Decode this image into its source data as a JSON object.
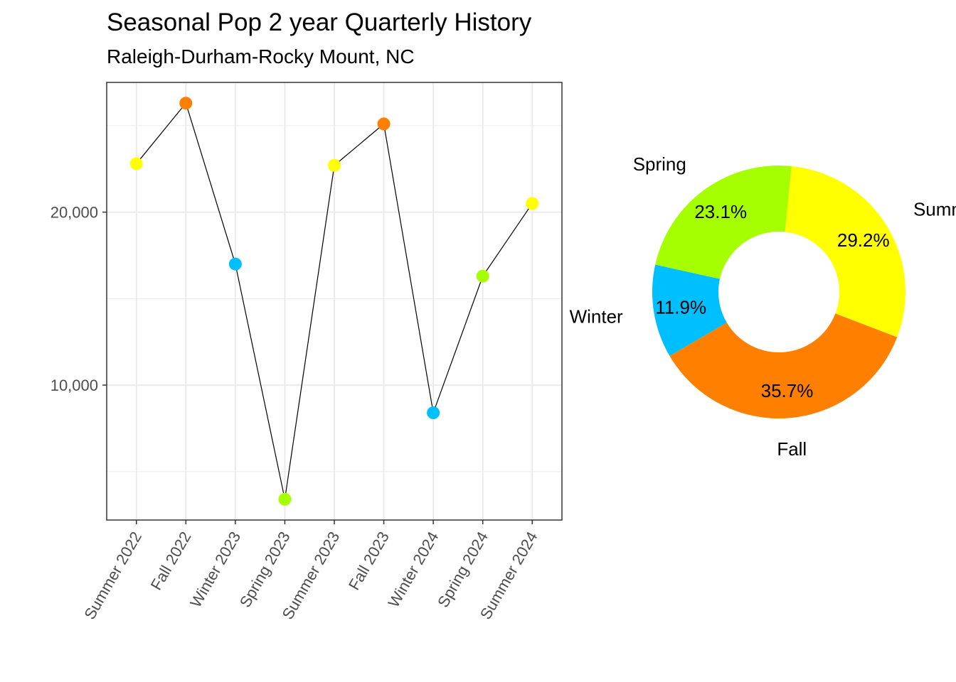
{
  "title": "Seasonal Pop 2 year Quarterly History",
  "subtitle": "Raleigh-Durham-Rocky Mount, NC",
  "colors": {
    "Summer": "#ffff00",
    "Fall": "#ff7f00",
    "Winter": "#00bfff",
    "Spring": "#a6ff00"
  },
  "chart_data": [
    {
      "type": "line",
      "categories": [
        "Summer 2022",
        "Fall 2022",
        "Winter 2023",
        "Spring 2023",
        "Summer 2023",
        "Fall 2023",
        "Winter 2024",
        "Spring 2024",
        "Summer 2024"
      ],
      "seasons": [
        "Summer",
        "Fall",
        "Winter",
        "Spring",
        "Summer",
        "Fall",
        "Winter",
        "Spring",
        "Summer"
      ],
      "values": [
        22800,
        26300,
        17000,
        3400,
        22700,
        25100,
        8400,
        16300,
        20500
      ],
      "y_ticks": [
        10000,
        20000
      ],
      "y_tick_labels": [
        "10,000",
        "20,000"
      ],
      "ylim": [
        2200,
        27500
      ],
      "grid": true
    },
    {
      "type": "pie",
      "style": "donut",
      "slices": [
        {
          "label": "Summer",
          "value": 29.2,
          "pct_label": "29.2%"
        },
        {
          "label": "Fall",
          "value": 35.7,
          "pct_label": "35.7%"
        },
        {
          "label": "Winter",
          "value": 11.9,
          "pct_label": "11.9%"
        },
        {
          "label": "Spring",
          "value": 23.1,
          "pct_label": "23.1%"
        }
      ]
    }
  ]
}
